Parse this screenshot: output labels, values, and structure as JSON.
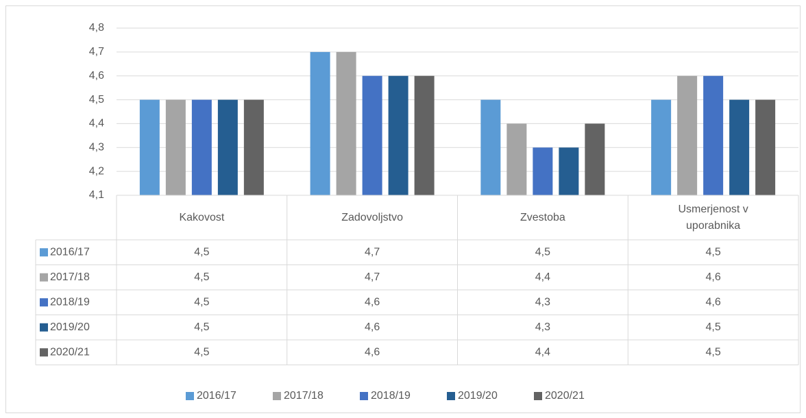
{
  "chart_data": {
    "type": "bar",
    "categories": [
      "Kakovost",
      "Zadovoljstvo",
      "Zvestoba",
      "Usmerjenost v uporabnika"
    ],
    "series": [
      {
        "name": "2016/17",
        "color": "#5b9bd5",
        "values": [
          4.5,
          4.7,
          4.5,
          4.5
        ],
        "value_labels": [
          "4,5",
          "4,7",
          "4,5",
          "4,5"
        ]
      },
      {
        "name": "2017/18",
        "color": "#a5a5a5",
        "values": [
          4.5,
          4.7,
          4.4,
          4.6
        ],
        "value_labels": [
          "4,5",
          "4,7",
          "4,4",
          "4,6"
        ]
      },
      {
        "name": "2018/19",
        "color": "#4472c4",
        "values": [
          4.5,
          4.6,
          4.3,
          4.6
        ],
        "value_labels": [
          "4,5",
          "4,6",
          "4,3",
          "4,6"
        ]
      },
      {
        "name": "2019/20",
        "color": "#255e91",
        "values": [
          4.5,
          4.6,
          4.3,
          4.5
        ],
        "value_labels": [
          "4,5",
          "4,6",
          "4,3",
          "4,5"
        ]
      },
      {
        "name": "2020/21",
        "color": "#636363",
        "values": [
          4.5,
          4.6,
          4.4,
          4.5
        ],
        "value_labels": [
          "4,5",
          "4,6",
          "4,4",
          "4,5"
        ]
      }
    ],
    "ylim": [
      4.1,
      4.8
    ],
    "yticks": [
      {
        "value": 4.1,
        "label": "4,1"
      },
      {
        "value": 4.2,
        "label": "4,2"
      },
      {
        "value": 4.3,
        "label": "4,3"
      },
      {
        "value": 4.4,
        "label": "4,4"
      },
      {
        "value": 4.5,
        "label": "4,5"
      },
      {
        "value": 4.6,
        "label": "4,6"
      },
      {
        "value": 4.7,
        "label": "4,7"
      },
      {
        "value": 4.8,
        "label": "4,8"
      }
    ],
    "grid": true,
    "legend": "bottom"
  }
}
